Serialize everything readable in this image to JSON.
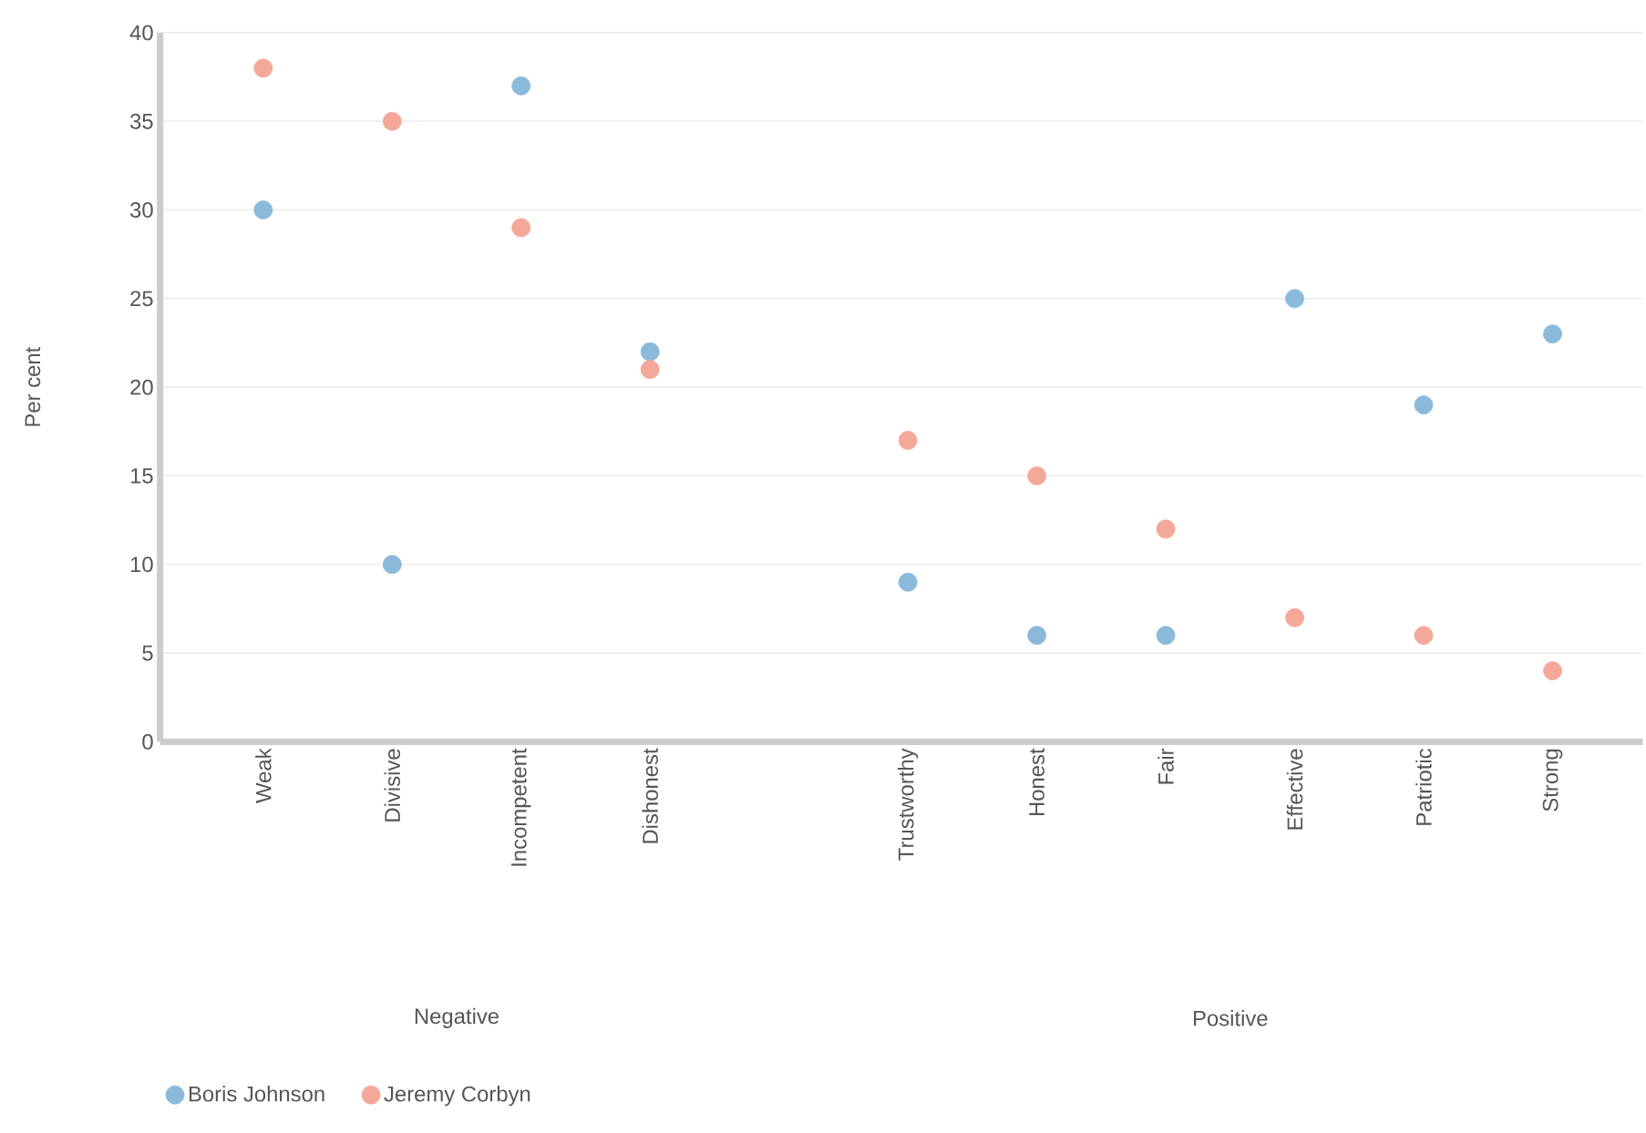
{
  "chart_data": {
    "type": "scatter",
    "ylabel": "Per cent",
    "categories": [
      "Weak",
      "Divisive",
      "Incompetent",
      "Dishonest",
      null,
      "Trustworthy",
      "Honest",
      "Fair",
      "Effective",
      "Patriotic",
      "Strong"
    ],
    "series": [
      {
        "name": "Boris Johnson",
        "color": "#8bb9d9",
        "values": [
          30,
          10,
          37,
          22,
          null,
          9,
          6,
          6,
          25,
          19,
          23
        ]
      },
      {
        "name": "Jeremy Corbyn",
        "color": "#f4a899",
        "values": [
          38,
          35,
          29,
          21,
          null,
          17,
          15,
          12,
          7,
          6,
          4
        ]
      }
    ],
    "annotations": [
      "Negative",
      "Positive"
    ],
    "ylim": [
      0,
      40
    ],
    "yticks": [
      0,
      5,
      10,
      15,
      20,
      25,
      30,
      35,
      40
    ],
    "grid": "y",
    "legend": "bottom left"
  }
}
